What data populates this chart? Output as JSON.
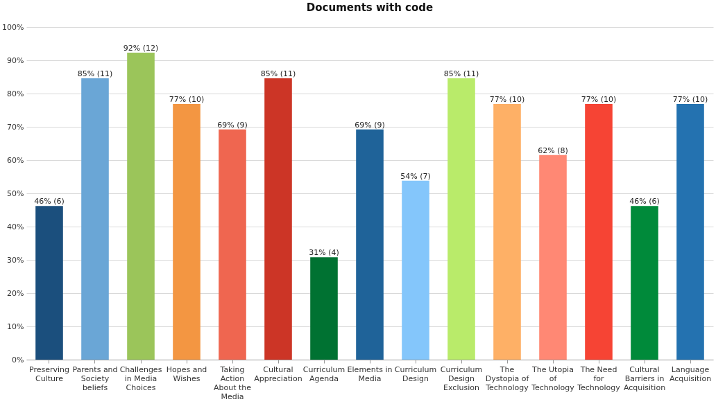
{
  "chart_data": {
    "type": "bar",
    "title": "Documents with code",
    "categories": [
      "Preserving Culture",
      "Parents and Society beliefs",
      "Challenges in Media Choices",
      "Hopes and Wishes",
      "Taking Action About the Media",
      "Cultural Appreciation",
      "Curriculum Agenda",
      "Elements in Media",
      "Curriculum Design",
      "Curriculum Design Exclusion",
      "The Dystopia of Technology",
      "The Utopia of Technology",
      "The Need for Technology",
      "Cultural Barriers in Acquisition",
      "Language Acquisition"
    ],
    "values": [
      46.2,
      84.6,
      92.3,
      76.9,
      69.2,
      84.6,
      30.8,
      69.2,
      53.8,
      84.6,
      76.9,
      61.5,
      76.9,
      46.2,
      76.9
    ],
    "value_labels": [
      "46% (6)",
      "85% (11)",
      "92% (12)",
      "77% (10)",
      "69% (9)",
      "85% (11)",
      "31% (4)",
      "69% (9)",
      "54% (7)",
      "85% (11)",
      "77% (10)",
      "62% (8)",
      "77% (10)",
      "46% (6)",
      "77% (10)"
    ],
    "colors": [
      "#1b4f7d",
      "#6aa6d6",
      "#9bc55a",
      "#f39642",
      "#ef6650",
      "#cc3526",
      "#007232",
      "#1f6399",
      "#84c6fb",
      "#b9eb6a",
      "#feb066",
      "#ff8874",
      "#f64434",
      "#008a3a",
      "#2472b0"
    ],
    "ylim": [
      0,
      100
    ],
    "yticks": [
      {
        "value": 0,
        "label": "0%"
      },
      {
        "value": 10,
        "label": "10%"
      },
      {
        "value": 20,
        "label": "20%"
      },
      {
        "value": 30,
        "label": "30%"
      },
      {
        "value": 40,
        "label": "40%"
      },
      {
        "value": 50,
        "label": "50%"
      },
      {
        "value": 60,
        "label": "60%"
      },
      {
        "value": 70,
        "label": "70%"
      },
      {
        "value": 80,
        "label": "80%"
      },
      {
        "value": 90,
        "label": "90%"
      },
      {
        "value": 100,
        "label": "100%"
      }
    ],
    "grid": true
  }
}
